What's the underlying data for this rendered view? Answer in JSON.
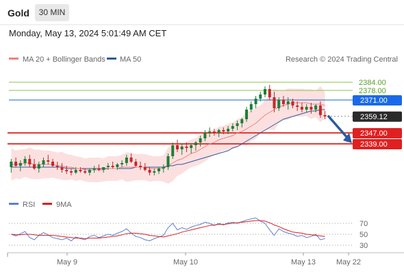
{
  "header": {
    "title": "Gold",
    "timeframe": "30 MIN"
  },
  "datetime": "Monday, May 13, 2024 5:01:49 AM CET",
  "credit": "Research © 2024 Trading Central",
  "legend": {
    "ma20": "MA 20 + Bollinger Bands",
    "ma50": "MA 50"
  },
  "rsi_legend": {
    "rsi": "RSI",
    "ma9": "9MA"
  },
  "colors": {
    "up": "#1e7e34",
    "down": "#c62828",
    "ma20": "#f08080",
    "ma50": "#2c5aa0",
    "band": "#fbd5d5",
    "resistance": "#1565c0",
    "support": "#e53935",
    "target_green": "#8bc34a",
    "arrow": "#2a5aa0",
    "rsi": "#5b7fd1",
    "ma9": "#d62020"
  },
  "chart_data": [
    {
      "type": "candlestick",
      "x_labels": [
        "May 9",
        "May 10",
        "May 13",
        "May 22"
      ],
      "ylim": [
        2310,
        2395
      ],
      "levels": [
        {
          "label": "2384.00",
          "value": 2384.0,
          "kind": "target"
        },
        {
          "label": "2378.00",
          "value": 2378.0,
          "kind": "target"
        },
        {
          "label": "2371.00",
          "value": 2371.0,
          "kind": "resistance"
        },
        {
          "label": "2359.12",
          "value": 2359.12,
          "kind": "last"
        },
        {
          "label": "2347.00",
          "value": 2347.0,
          "kind": "support"
        },
        {
          "label": "2339.00",
          "value": 2339.0,
          "kind": "support"
        }
      ],
      "ohlc": [
        [
          2322,
          2328,
          2318,
          2326
        ],
        [
          2326,
          2329,
          2322,
          2323
        ],
        [
          2323,
          2327,
          2319,
          2325
        ],
        [
          2325,
          2330,
          2323,
          2328
        ],
        [
          2328,
          2331,
          2322,
          2324
        ],
        [
          2324,
          2328,
          2320,
          2321
        ],
        [
          2321,
          2326,
          2318,
          2324
        ],
        [
          2324,
          2329,
          2322,
          2327
        ],
        [
          2327,
          2331,
          2324,
          2326
        ],
        [
          2326,
          2328,
          2322,
          2323
        ],
        [
          2323,
          2326,
          2320,
          2322
        ],
        [
          2322,
          2325,
          2318,
          2320
        ],
        [
          2320,
          2323,
          2317,
          2319
        ],
        [
          2319,
          2321,
          2316,
          2318
        ],
        [
          2318,
          2322,
          2317,
          2320
        ],
        [
          2320,
          2322,
          2318,
          2319
        ],
        [
          2319,
          2321,
          2317,
          2318
        ],
        [
          2318,
          2321,
          2316,
          2320
        ],
        [
          2320,
          2323,
          2318,
          2321
        ],
        [
          2321,
          2324,
          2319,
          2320
        ],
        [
          2320,
          2322,
          2318,
          2322
        ],
        [
          2322,
          2325,
          2320,
          2323
        ],
        [
          2323,
          2326,
          2321,
          2322
        ],
        [
          2322,
          2325,
          2320,
          2324
        ],
        [
          2324,
          2327,
          2322,
          2325
        ],
        [
          2325,
          2331,
          2323,
          2329
        ],
        [
          2329,
          2332,
          2325,
          2326
        ],
        [
          2326,
          2328,
          2322,
          2323
        ],
        [
          2323,
          2326,
          2320,
          2322
        ],
        [
          2322,
          2325,
          2319,
          2320
        ],
        [
          2320,
          2322,
          2316,
          2318
        ],
        [
          2318,
          2321,
          2316,
          2319
        ],
        [
          2319,
          2322,
          2317,
          2321
        ],
        [
          2321,
          2324,
          2318,
          2322
        ],
        [
          2322,
          2332,
          2320,
          2330
        ],
        [
          2330,
          2340,
          2328,
          2338
        ],
        [
          2338,
          2342,
          2333,
          2335
        ],
        [
          2335,
          2339,
          2331,
          2337
        ],
        [
          2337,
          2340,
          2333,
          2336
        ],
        [
          2336,
          2339,
          2332,
          2338
        ],
        [
          2338,
          2341,
          2334,
          2340
        ],
        [
          2340,
          2345,
          2337,
          2343
        ],
        [
          2343,
          2349,
          2341,
          2347
        ],
        [
          2347,
          2351,
          2344,
          2348
        ],
        [
          2348,
          2350,
          2345,
          2347
        ],
        [
          2347,
          2350,
          2344,
          2349
        ],
        [
          2349,
          2351,
          2346,
          2348
        ],
        [
          2348,
          2352,
          2346,
          2350
        ],
        [
          2350,
          2354,
          2348,
          2352
        ],
        [
          2352,
          2356,
          2349,
          2354
        ],
        [
          2354,
          2358,
          2351,
          2357
        ],
        [
          2357,
          2366,
          2355,
          2364
        ],
        [
          2364,
          2370,
          2362,
          2368
        ],
        [
          2368,
          2374,
          2365,
          2372
        ],
        [
          2372,
          2377,
          2370,
          2375
        ],
        [
          2375,
          2381,
          2373,
          2379
        ],
        [
          2379,
          2382,
          2371,
          2373
        ],
        [
          2373,
          2377,
          2362,
          2365
        ],
        [
          2365,
          2373,
          2363,
          2371
        ],
        [
          2371,
          2374,
          2366,
          2368
        ],
        [
          2368,
          2373,
          2364,
          2370
        ],
        [
          2370,
          2372,
          2365,
          2367
        ],
        [
          2367,
          2370,
          2363,
          2366
        ],
        [
          2366,
          2369,
          2362,
          2364
        ],
        [
          2364,
          2368,
          2362,
          2366
        ],
        [
          2366,
          2369,
          2361,
          2364
        ],
        [
          2364,
          2368,
          2362,
          2367
        ],
        [
          2367,
          2370,
          2358,
          2360
        ],
        [
          2360,
          2363,
          2357,
          2359
        ]
      ],
      "ma20": [
        2324,
        2324,
        2324,
        2325,
        2325,
        2324,
        2324,
        2324,
        2324,
        2324,
        2323,
        2323,
        2322,
        2322,
        2321,
        2321,
        2320,
        2320,
        2320,
        2320,
        2320,
        2321,
        2321,
        2321,
        2322,
        2322,
        2322,
        2322,
        2322,
        2322,
        2321,
        2321,
        2321,
        2321,
        2323,
        2325,
        2327,
        2328,
        2330,
        2332,
        2333,
        2335,
        2337,
        2339,
        2340,
        2342,
        2343,
        2344,
        2345,
        2347,
        2348,
        2350,
        2352,
        2354,
        2357,
        2360,
        2362,
        2364,
        2366,
        2367,
        2368,
        2369,
        2369,
        2369,
        2369,
        2368,
        2368,
        2368,
        2367
      ],
      "ma50": [
        2322,
        2322,
        2322,
        2322,
        2322,
        2322,
        2322,
        2322,
        2322,
        2322,
        2322,
        2322,
        2321,
        2321,
        2321,
        2321,
        2321,
        2321,
        2321,
        2321,
        2321,
        2321,
        2321,
        2321,
        2321,
        2321,
        2321,
        2322,
        2322,
        2322,
        2322,
        2322,
        2322,
        2322,
        2323,
        2323,
        2324,
        2324,
        2325,
        2326,
        2327,
        2328,
        2329,
        2330,
        2331,
        2332,
        2333,
        2334,
        2336,
        2337,
        2339,
        2341,
        2343,
        2345,
        2347,
        2349,
        2351,
        2353,
        2355,
        2357,
        2358,
        2359,
        2360,
        2361,
        2362,
        2363,
        2363,
        2364,
        2364
      ],
      "arrow": {
        "from": [
          2359,
          2350
        ],
        "to": "2339.00"
      }
    },
    {
      "type": "line",
      "name": "RSI",
      "ylim": [
        20,
        85
      ],
      "ticks": [
        70,
        50,
        30
      ],
      "rsi": [
        50,
        47,
        51,
        55,
        44,
        40,
        48,
        53,
        49,
        44,
        42,
        40,
        43,
        38,
        45,
        42,
        40,
        46,
        48,
        44,
        47,
        50,
        48,
        52,
        55,
        60,
        52,
        46,
        44,
        40,
        38,
        42,
        45,
        48,
        62,
        70,
        58,
        62,
        59,
        63,
        66,
        68,
        72,
        70,
        66,
        70,
        67,
        71,
        72,
        70,
        73,
        76,
        78,
        80,
        74,
        70,
        58,
        48,
        60,
        55,
        52,
        50,
        46,
        48,
        44,
        46,
        50,
        40,
        42
      ],
      "ma9": [
        50,
        49,
        49,
        50,
        50,
        49,
        48,
        48,
        48,
        48,
        47,
        46,
        45,
        44,
        43,
        43,
        42,
        43,
        43,
        43,
        44,
        45,
        46,
        47,
        49,
        51,
        52,
        52,
        51,
        50,
        48,
        47,
        46,
        45,
        47,
        49,
        51,
        54,
        56,
        58,
        60,
        62,
        64,
        66,
        67,
        68,
        68,
        69,
        70,
        71,
        72,
        73,
        74,
        75,
        75,
        74,
        71,
        67,
        64,
        60,
        57,
        54,
        53,
        52,
        50,
        49,
        48,
        47,
        46
      ]
    }
  ]
}
